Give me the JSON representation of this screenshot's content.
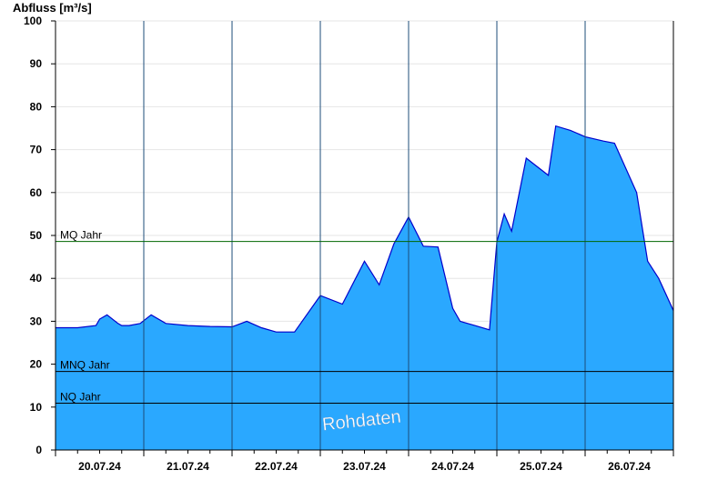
{
  "chart_data": {
    "type": "area",
    "ylabel": "Abfluss [m³/s]",
    "ylim": [
      0,
      100
    ],
    "yticks": [
      0,
      10,
      20,
      30,
      40,
      50,
      60,
      70,
      80,
      90,
      100
    ],
    "x_start": "20.07.24 00:00",
    "x_end": "26.07.24 23:59",
    "xtick_labels": [
      "20.07.24",
      "21.07.24",
      "22.07.24",
      "23.07.24",
      "24.07.24",
      "25.07.24",
      "26.07.24"
    ],
    "grid": true,
    "area_color": "#2aa8ff",
    "outline_color": "#0000cc",
    "reference_lines": [
      {
        "name": "MQ Jahr",
        "value": 48.6,
        "color": "#006600"
      },
      {
        "name": "MNQ Jahr",
        "value": 18.3,
        "color": "#000000"
      },
      {
        "name": "NQ Jahr",
        "value": 10.9,
        "color": "#000000"
      }
    ],
    "watermark": "Rohdaten",
    "series": [
      {
        "x_hours": [
          0,
          2,
          6,
          11,
          12,
          14,
          17,
          18,
          20,
          23,
          26,
          30,
          36,
          42,
          48,
          52,
          56,
          60,
          65,
          72,
          78,
          84,
          88,
          92,
          96,
          100,
          104,
          108,
          110,
          114,
          118,
          120,
          122,
          124,
          128,
          134,
          136,
          140,
          144,
          149,
          152,
          158,
          161,
          164,
          168
        ],
        "values": [
          28.5,
          28.5,
          28.5,
          29.0,
          30.5,
          31.5,
          29.5,
          29.0,
          29.0,
          29.5,
          31.5,
          29.5,
          29.0,
          28.8,
          28.7,
          30.0,
          28.5,
          27.5,
          27.5,
          36.0,
          34.0,
          44.0,
          38.5,
          48.0,
          54.3,
          47.5,
          47.3,
          33.0,
          30.0,
          29.0,
          28.0,
          48.5,
          55.0,
          51.0,
          68.0,
          64.0,
          75.5,
          74.5,
          73.0,
          72.0,
          71.5,
          60.0,
          44.0,
          40.0,
          32.5
        ]
      }
    ]
  }
}
